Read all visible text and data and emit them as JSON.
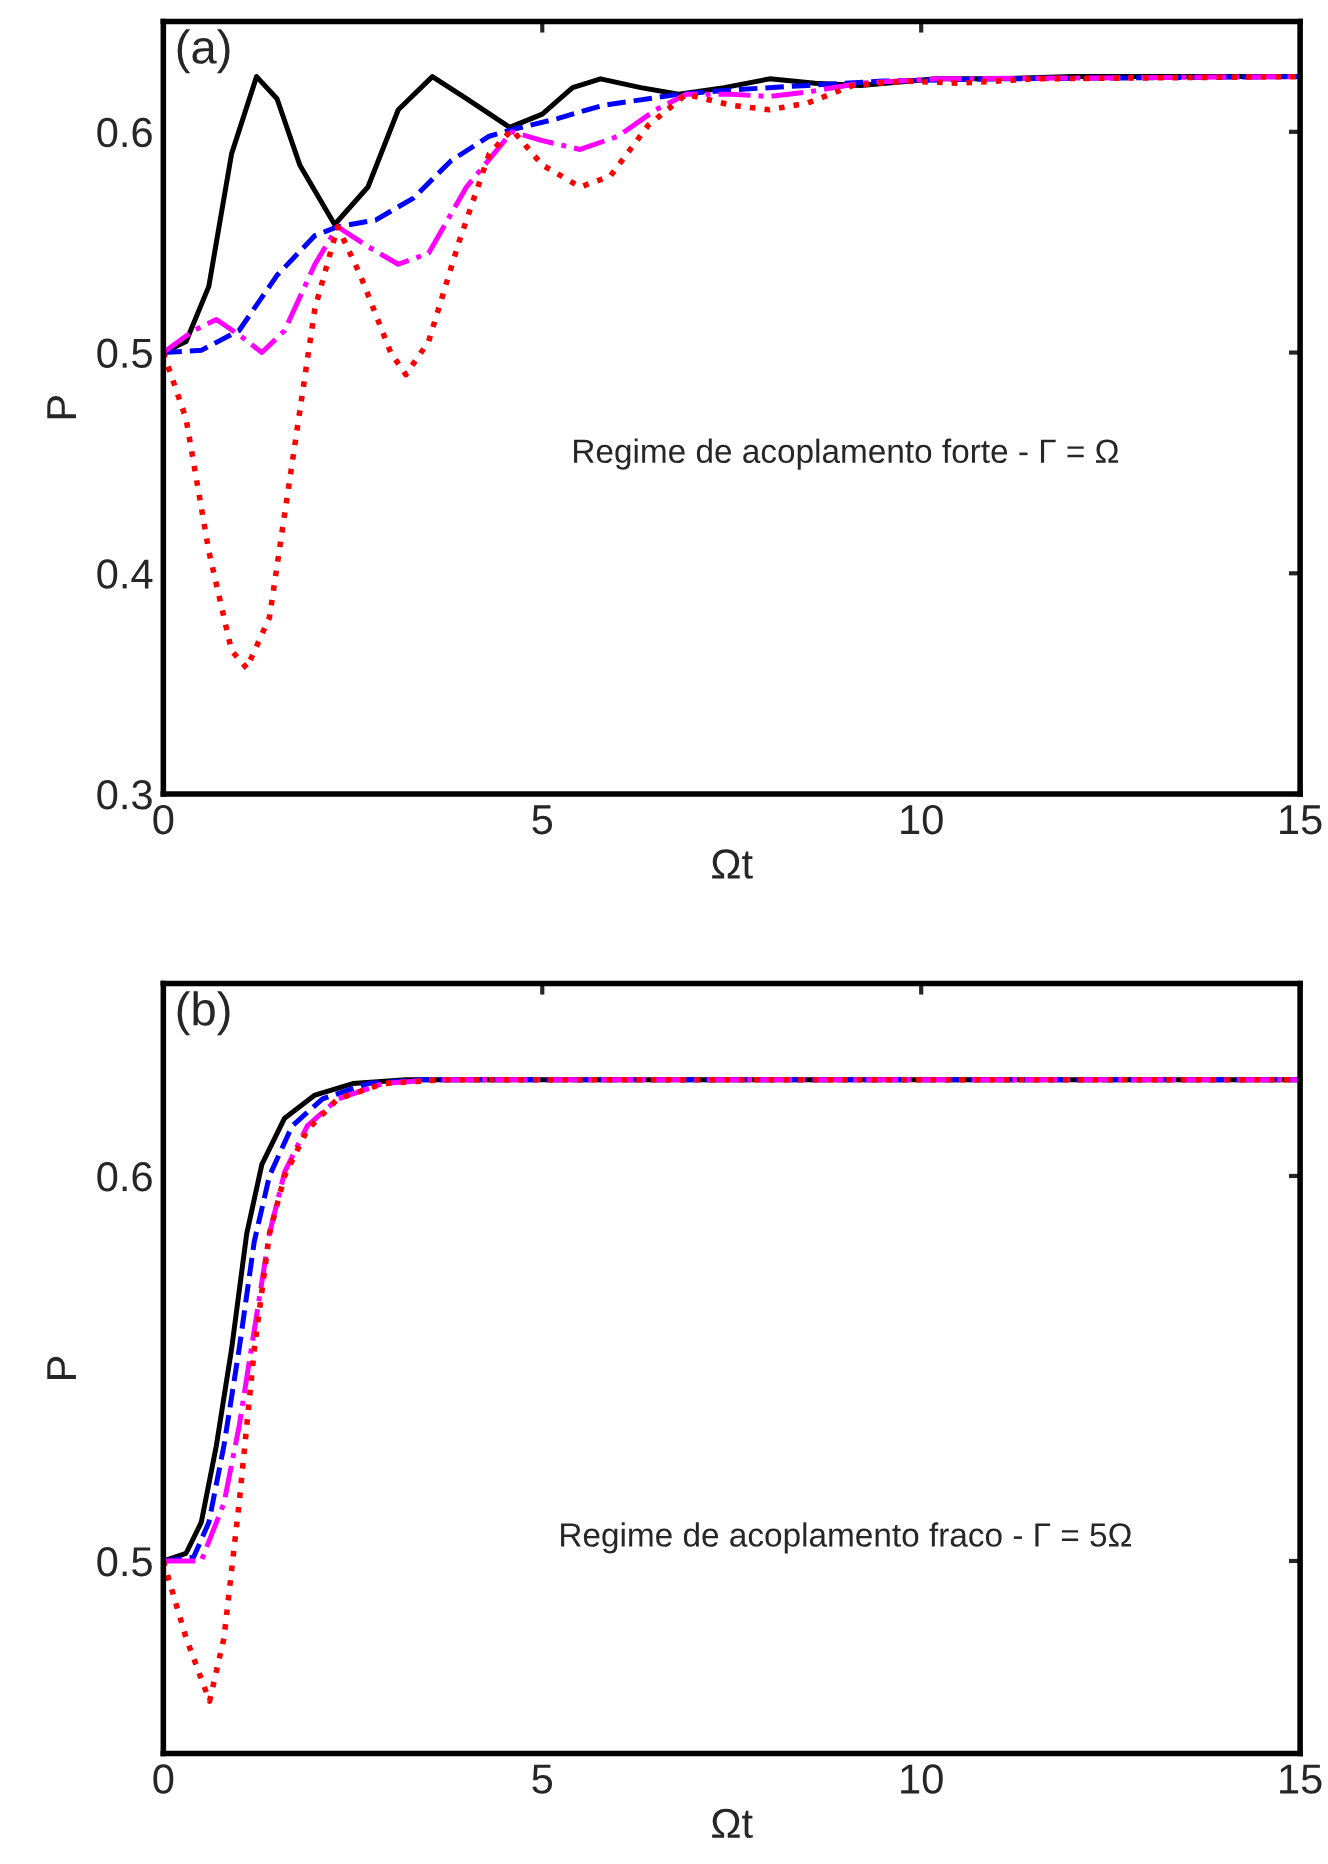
{
  "chart_data": [
    {
      "type": "line",
      "xlabel": "Ωt",
      "ylabel": "P",
      "xlim": [
        0,
        15
      ],
      "xticks": [
        0,
        5,
        10,
        15
      ],
      "ylim": [
        0.3,
        0.65
      ],
      "yticks": [
        0.3,
        0.4,
        0.5,
        0.6
      ],
      "grid": false,
      "annotations": [
        "(a)",
        "Regime de acoplamento forte - Γ = Ω"
      ],
      "series": [
        {
          "color": "#000000",
          "line_style": "solid",
          "x": [
            0,
            0.3,
            0.6,
            0.9,
            1.23,
            1.5,
            1.8,
            2.26,
            2.7,
            3.1,
            3.55,
            4.0,
            4.57,
            5.0,
            5.4,
            5.77,
            6.3,
            6.8,
            7.4,
            8.0,
            8.6,
            9.2,
            10.2,
            11,
            12,
            15
          ],
          "values": [
            0.5,
            0.505,
            0.53,
            0.59,
            0.625,
            0.615,
            0.585,
            0.558,
            0.575,
            0.61,
            0.625,
            0.615,
            0.602,
            0.608,
            0.62,
            0.624,
            0.62,
            0.617,
            0.62,
            0.624,
            0.622,
            0.621,
            0.624,
            0.624,
            0.625,
            0.625
          ]
        },
        {
          "color": "#0000ff",
          "line_style": "dashed",
          "x": [
            0,
            0.5,
            1.0,
            1.5,
            2.0,
            2.3,
            2.8,
            3.3,
            3.8,
            4.3,
            4.6,
            5.2,
            5.8,
            6.8,
            7.5,
            8.5,
            9.5,
            11,
            15
          ],
          "values": [
            0.5,
            0.501,
            0.51,
            0.535,
            0.553,
            0.557,
            0.56,
            0.57,
            0.587,
            0.598,
            0.601,
            0.606,
            0.612,
            0.617,
            0.619,
            0.621,
            0.623,
            0.624,
            0.625
          ]
        },
        {
          "color": "#ff00ff",
          "line_style": "dashdot",
          "x": [
            0,
            0.4,
            0.7,
            1.0,
            1.3,
            1.6,
            2.0,
            2.3,
            2.7,
            3.1,
            3.5,
            4.0,
            4.6,
            5.0,
            5.5,
            6.0,
            6.5,
            6.9,
            7.5,
            8.0,
            8.5,
            9.2,
            10.2,
            15
          ],
          "values": [
            0.5,
            0.51,
            0.515,
            0.508,
            0.5,
            0.51,
            0.54,
            0.557,
            0.548,
            0.54,
            0.545,
            0.575,
            0.6,
            0.596,
            0.592,
            0.598,
            0.61,
            0.617,
            0.617,
            0.616,
            0.618,
            0.622,
            0.624,
            0.625
          ]
        },
        {
          "color": "#ff0000",
          "line_style": "dotted",
          "x": [
            0,
            0.3,
            0.6,
            0.9,
            1.1,
            1.4,
            1.7,
            2.0,
            2.3,
            2.6,
            3.0,
            3.2,
            3.5,
            3.9,
            4.3,
            4.6,
            5.0,
            5.5,
            5.9,
            6.4,
            6.9,
            7.5,
            8.0,
            8.5,
            9.1,
            9.8,
            10.5,
            11.5,
            15
          ],
          "values": [
            0.5,
            0.47,
            0.41,
            0.365,
            0.357,
            0.38,
            0.45,
            0.52,
            0.557,
            0.535,
            0.5,
            0.49,
            0.505,
            0.55,
            0.59,
            0.601,
            0.585,
            0.575,
            0.58,
            0.603,
            0.617,
            0.612,
            0.61,
            0.613,
            0.621,
            0.623,
            0.622,
            0.624,
            0.625
          ]
        }
      ]
    },
    {
      "type": "line",
      "xlabel": "Ωt",
      "ylabel": "P",
      "xlim": [
        0,
        15
      ],
      "xticks": [
        0,
        5,
        10,
        15
      ],
      "ylim": [
        0.45,
        0.65
      ],
      "yticks": [
        0.5,
        0.6
      ],
      "grid": false,
      "annotations": [
        "(b)",
        "Regime de acoplamento fraco - Γ = 5Ω"
      ],
      "series": [
        {
          "color": "#000000",
          "line_style": "solid",
          "x": [
            0,
            0.3,
            0.5,
            0.7,
            0.9,
            1.1,
            1.3,
            1.6,
            2.0,
            2.5,
            3.2,
            15
          ],
          "values": [
            0.5,
            0.502,
            0.51,
            0.53,
            0.555,
            0.585,
            0.603,
            0.615,
            0.621,
            0.624,
            0.625,
            0.625
          ]
        },
        {
          "color": "#0000ff",
          "line_style": "dashed",
          "x": [
            0,
            0.4,
            0.6,
            0.8,
            1.0,
            1.2,
            1.4,
            1.7,
            2.1,
            2.7,
            3.4,
            15
          ],
          "values": [
            0.5,
            0.501,
            0.51,
            0.53,
            0.555,
            0.583,
            0.6,
            0.613,
            0.62,
            0.624,
            0.625,
            0.625
          ]
        },
        {
          "color": "#ff00ff",
          "line_style": "dashdot",
          "x": [
            0,
            0.5,
            0.8,
            1.0,
            1.2,
            1.4,
            1.6,
            1.9,
            2.3,
            2.9,
            3.6,
            15
          ],
          "values": [
            0.5,
            0.5,
            0.515,
            0.535,
            0.56,
            0.585,
            0.601,
            0.613,
            0.62,
            0.624,
            0.625,
            0.625
          ]
        },
        {
          "color": "#ff0000",
          "line_style": "dotted",
          "x": [
            0,
            0.3,
            0.61,
            0.8,
            1.0,
            1.2,
            1.4,
            1.6,
            1.9,
            2.3,
            2.9,
            3.7,
            15
          ],
          "values": [
            0.5,
            0.48,
            0.4636,
            0.48,
            0.515,
            0.555,
            0.585,
            0.6,
            0.612,
            0.62,
            0.624,
            0.625,
            0.625
          ]
        }
      ]
    }
  ]
}
